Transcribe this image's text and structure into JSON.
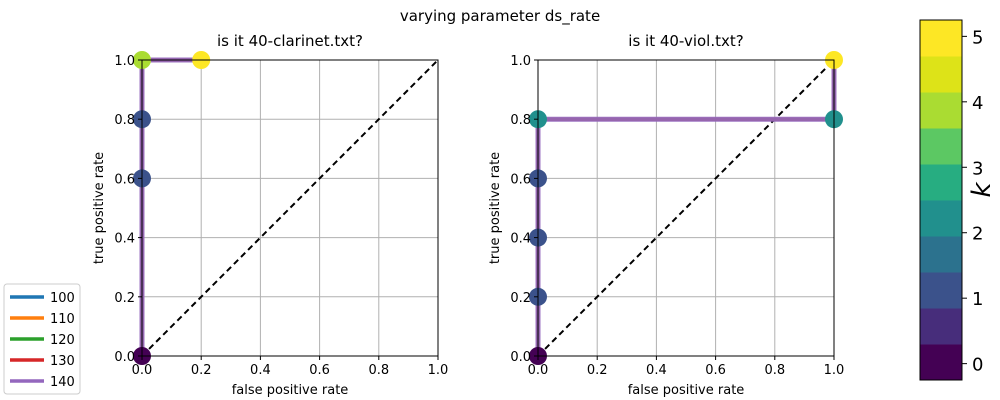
{
  "suptitle": "varying parameter ds_rate",
  "colorbar": {
    "label": "k",
    "ticks": [
      "0",
      "1",
      "2",
      "3",
      "4",
      "5"
    ],
    "tick_values": [
      0,
      1,
      2,
      3,
      4,
      5
    ],
    "range": [
      -0.25,
      5.25
    ],
    "colors": [
      "#440154",
      "#472d7b",
      "#3b528b",
      "#2c728e",
      "#21908d",
      "#27ad81",
      "#5cc863",
      "#aadc32",
      "#dde318",
      "#fde725"
    ]
  },
  "legend": {
    "placement": "lower-left",
    "entries": [
      {
        "label": "100",
        "color": "#1f77b4"
      },
      {
        "label": "110",
        "color": "#ff7f0e"
      },
      {
        "label": "120",
        "color": "#2ca02c"
      },
      {
        "label": "130",
        "color": "#d62728"
      },
      {
        "label": "140",
        "color": "#9467bd"
      }
    ]
  },
  "chart_data": [
    {
      "type": "line",
      "title": "is it 40-clarinet.txt?",
      "xlabel": "false positive rate",
      "ylabel": "true positive rate",
      "xlim": [
        0.0,
        1.0
      ],
      "ylim": [
        0.0,
        1.0
      ],
      "xticks": [
        "0.0",
        "0.2",
        "0.4",
        "0.6",
        "0.8",
        "1.0"
      ],
      "yticks": [
        "0.0",
        "0.2",
        "0.4",
        "0.6",
        "0.8",
        "1.0"
      ],
      "grid": true,
      "diagonal": true,
      "series": [
        {
          "name": "100",
          "color": "#1f77b4",
          "x": [
            0.0,
            0.0,
            0.0,
            0.0,
            0.2
          ],
          "y": [
            0.0,
            0.6,
            0.8,
            1.0,
            1.0
          ]
        },
        {
          "name": "110",
          "color": "#ff7f0e",
          "x": [
            0.0,
            0.0,
            0.0,
            0.0,
            0.2
          ],
          "y": [
            0.0,
            0.6,
            0.8,
            1.0,
            1.0
          ]
        },
        {
          "name": "120",
          "color": "#2ca02c",
          "x": [
            0.0,
            0.0,
            0.0,
            0.0,
            0.2
          ],
          "y": [
            0.0,
            0.6,
            0.8,
            1.0,
            1.0
          ]
        },
        {
          "name": "130",
          "color": "#d62728",
          "x": [
            0.0,
            0.0,
            0.0,
            0.0,
            0.2
          ],
          "y": [
            0.0,
            0.6,
            0.8,
            1.0,
            1.0
          ]
        },
        {
          "name": "140",
          "color": "#9467bd",
          "x": [
            0.0,
            0.0,
            0.0,
            0.0,
            0.2
          ],
          "y": [
            0.0,
            0.6,
            0.8,
            1.0,
            1.0
          ]
        }
      ],
      "points": [
        {
          "x": 0.0,
          "y": 0.0,
          "k": 0
        },
        {
          "x": 0.0,
          "y": 0.6,
          "k": 1
        },
        {
          "x": 0.0,
          "y": 0.8,
          "k": 1
        },
        {
          "x": 0.0,
          "y": 1.0,
          "k": 4
        },
        {
          "x": 0.2,
          "y": 1.0,
          "k": 5
        }
      ]
    },
    {
      "type": "line",
      "title": "is it 40-viol.txt?",
      "xlabel": "false positive rate",
      "ylabel": "true positive rate",
      "xlim": [
        0.0,
        1.0
      ],
      "ylim": [
        0.0,
        1.0
      ],
      "xticks": [
        "0.0",
        "0.2",
        "0.4",
        "0.6",
        "0.8",
        "1.0"
      ],
      "yticks": [
        "0.0",
        "0.2",
        "0.4",
        "0.6",
        "0.8",
        "1.0"
      ],
      "grid": true,
      "diagonal": true,
      "series": [
        {
          "name": "100",
          "color": "#1f77b4",
          "x": [
            0.0,
            0.0,
            0.0,
            0.0,
            0.0,
            1.0,
            1.0
          ],
          "y": [
            0.0,
            0.2,
            0.4,
            0.6,
            0.8,
            0.8,
            1.0
          ]
        },
        {
          "name": "110",
          "color": "#ff7f0e",
          "x": [
            0.0,
            0.0,
            0.0,
            0.0,
            0.0,
            1.0,
            1.0
          ],
          "y": [
            0.0,
            0.2,
            0.4,
            0.6,
            0.8,
            0.8,
            1.0
          ]
        },
        {
          "name": "120",
          "color": "#2ca02c",
          "x": [
            0.0,
            0.0,
            0.0,
            0.0,
            0.0,
            1.0,
            1.0
          ],
          "y": [
            0.0,
            0.2,
            0.4,
            0.6,
            0.8,
            0.8,
            1.0
          ]
        },
        {
          "name": "130",
          "color": "#d62728",
          "x": [
            0.0,
            0.0,
            0.0,
            0.0,
            0.0,
            1.0,
            1.0
          ],
          "y": [
            0.0,
            0.2,
            0.4,
            0.6,
            0.8,
            0.8,
            1.0
          ]
        },
        {
          "name": "140",
          "color": "#9467bd",
          "x": [
            0.0,
            0.0,
            0.0,
            0.0,
            0.0,
            1.0,
            1.0
          ],
          "y": [
            0.0,
            0.2,
            0.4,
            0.6,
            0.8,
            0.8,
            1.0
          ]
        }
      ],
      "points": [
        {
          "x": 0.0,
          "y": 0.0,
          "k": 0
        },
        {
          "x": 0.0,
          "y": 0.2,
          "k": 1
        },
        {
          "x": 0.0,
          "y": 0.4,
          "k": 1
        },
        {
          "x": 0.0,
          "y": 0.6,
          "k": 1
        },
        {
          "x": 0.0,
          "y": 0.8,
          "k": 2
        },
        {
          "x": 1.0,
          "y": 0.8,
          "k": 2
        },
        {
          "x": 1.0,
          "y": 1.0,
          "k": 5
        }
      ]
    }
  ]
}
